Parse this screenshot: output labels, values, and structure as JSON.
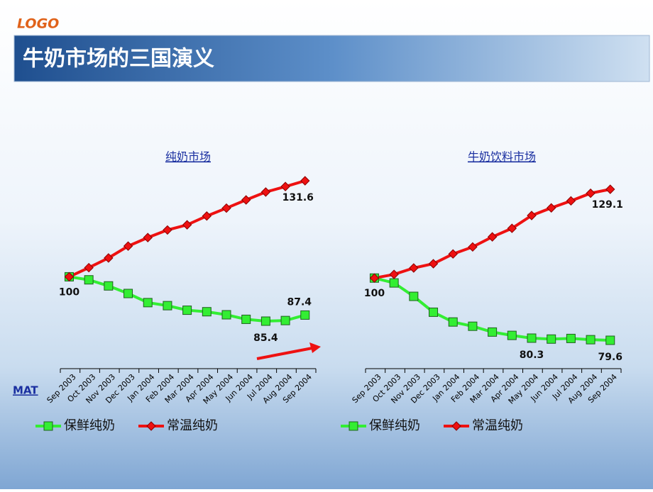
{
  "logo": "LOGO",
  "header": {
    "title": "牛奶市场的三国演义"
  },
  "note": "MAT",
  "chart_data": [
    {
      "type": "line",
      "title": "纯奶市场",
      "categories": [
        "Sep 2003",
        "Oct 2003",
        "Nov 2003",
        "Dec 2003",
        "Jan 2004",
        "Feb 2004",
        "Mar 2004",
        "Apr 2004",
        "May 2004",
        "Jun 2004",
        "Jul 2004",
        "Aug 2004",
        "Sep 2004"
      ],
      "series": [
        {
          "name": "保鲜纯奶",
          "color": "#33ee33",
          "values": [
            100,
            99,
            97,
            94.5,
            91.5,
            90.5,
            89,
            88.5,
            87.5,
            86,
            85.4,
            85.6,
            87.4
          ]
        },
        {
          "name": "常温纯奶",
          "color": "#ee1111",
          "values": [
            100,
            103,
            106.2,
            110.1,
            112.9,
            115.4,
            117.1,
            120,
            122.6,
            125.3,
            127.9,
            129.7,
            131.6
          ]
        }
      ]
    },
    {
      "type": "line",
      "title": "牛奶饮料市场",
      "categories": [
        "Sep 2003",
        "Oct 2003",
        "Nov 2003",
        "Dec 2003",
        "Jan 2004",
        "Feb 2004",
        "Mar 2004",
        "Apr 2004",
        "May 2004",
        "Jun 2004",
        "Jul 2004",
        "Aug 2004",
        "Sep 2004"
      ],
      "series": [
        {
          "name": "保鲜纯奶",
          "color": "#33ee33",
          "values": [
            100,
            98.4,
            94,
            88.8,
            85.6,
            84.2,
            82.3,
            81.2,
            80.3,
            80,
            80.2,
            79.8,
            79.6
          ]
        },
        {
          "name": "常温纯奶",
          "color": "#ee1111",
          "values": [
            100,
            101.2,
            103.3,
            104.7,
            107.9,
            110.2,
            113.5,
            116.3,
            120.5,
            123,
            125.3,
            127.8,
            129.1
          ]
        }
      ]
    }
  ]
}
